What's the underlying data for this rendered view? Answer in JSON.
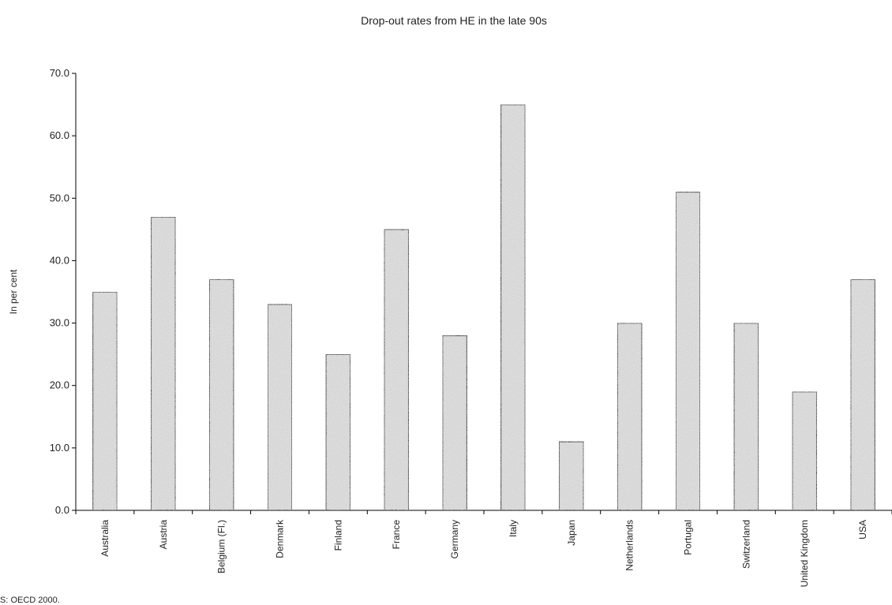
{
  "chart_data": {
    "type": "bar",
    "title": "Drop-out rates  from HE in the late 90s",
    "xlabel": "",
    "ylabel": "In per cent",
    "categories": [
      "Australia",
      "Austria",
      "Belgium (Fl.)",
      "Denmark",
      "Finland",
      "France",
      "Germany",
      "Italy",
      "Japan",
      "Netherlands",
      "Portugal",
      "Switzerland",
      "United Kingdom",
      "USA"
    ],
    "values": [
      35,
      47,
      37,
      33,
      25,
      45,
      28,
      65,
      11,
      30,
      51,
      30,
      19,
      37
    ],
    "ylim": [
      0,
      70
    ],
    "yticks": [
      "0.0",
      "10.0",
      "20.0",
      "30.0",
      "40.0",
      "50.0",
      "60.0",
      "70.0"
    ],
    "grid": false,
    "legend": "none",
    "bar_color": "#e4e4e4",
    "source": "S: OECD 2000."
  }
}
